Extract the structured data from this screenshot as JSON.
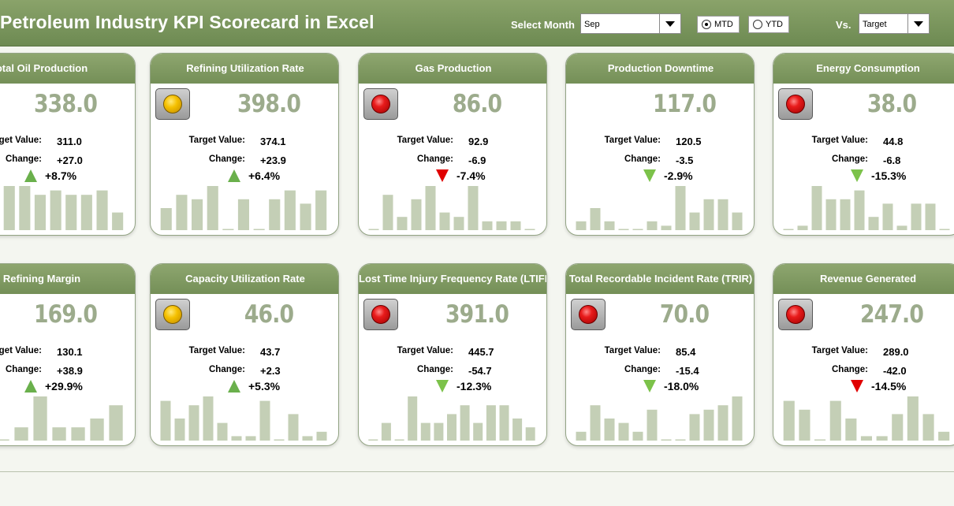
{
  "header": {
    "title": "Petroleum Industry KPI Scorecard in Excel",
    "select_month_label": "Select Month",
    "month_value": "Sep",
    "radio_mtd": "MTD",
    "radio_ytd": "YTD",
    "selected_period": "MTD",
    "vs_label": "Vs.",
    "vs_value": "Target"
  },
  "labels": {
    "target": "Target Value:",
    "change": "Change:"
  },
  "colors": {
    "header_green": "#7a9560",
    "big_number": "#9cab8c",
    "bar_fill": "#c4cfb6",
    "up_green": "#6ab04c",
    "down_red": "#e00000"
  },
  "cards": [
    {
      "title": "Total Oil Production",
      "visible_title": "otal Oil Production",
      "status": "none",
      "actual": "338.0",
      "target": "311.0",
      "change": "+27.0",
      "pct": "+8.7%",
      "direction": "up",
      "bars": [
        1,
        2,
        2,
        10,
        10,
        8,
        9,
        8,
        8,
        9,
        4
      ]
    },
    {
      "title": "Refining Utilization Rate",
      "status": "yellow",
      "actual": "398.0",
      "target": "374.1",
      "change": "+23.9",
      "pct": "+6.4%",
      "direction": "up",
      "bars": [
        5,
        8,
        7,
        10,
        0,
        7,
        0,
        7,
        9,
        6,
        9
      ]
    },
    {
      "title": "Gas Production",
      "status": "red",
      "actual": "86.0",
      "target": "92.9",
      "change": "-6.9",
      "pct": "-7.4%",
      "direction": "down-red",
      "bars": [
        0,
        8,
        3,
        7,
        10,
        4,
        3,
        10,
        2,
        2,
        2,
        0
      ]
    },
    {
      "title": "Production Downtime",
      "status": "none",
      "actual": "117.0",
      "target": "120.5",
      "change": "-3.5",
      "pct": "-2.9%",
      "direction": "down-green",
      "bars": [
        2,
        5,
        2,
        0,
        0,
        2,
        1,
        10,
        4,
        7,
        7,
        4
      ]
    },
    {
      "title": "Energy Consumption",
      "status": "red",
      "actual": "38.0",
      "target": "44.8",
      "change": "-6.8",
      "pct": "-15.3%",
      "direction": "down-green",
      "bars": [
        0,
        1,
        10,
        7,
        7,
        9,
        3,
        6,
        1,
        6,
        6,
        0
      ]
    },
    {
      "title": "Refining Margin",
      "visible_title": "Refining Margin",
      "status": "none",
      "actual": "169.0",
      "target": "130.1",
      "change": "+38.9",
      "pct": "+29.9%",
      "direction": "up",
      "bars": [
        3,
        1,
        0,
        3,
        10,
        3,
        3,
        5,
        8
      ]
    },
    {
      "title": "Capacity Utilization Rate",
      "status": "yellow",
      "actual": "46.0",
      "target": "43.7",
      "change": "+2.3",
      "pct": "+5.3%",
      "direction": "up",
      "bars": [
        9,
        5,
        8,
        10,
        4,
        1,
        1,
        9,
        0,
        6,
        1,
        2
      ]
    },
    {
      "title": "Lost Time Injury Frequency Rate (LTIFR)",
      "status": "red",
      "actual": "391.0",
      "target": "445.7",
      "change": "-54.7",
      "pct": "-12.3%",
      "direction": "down-green",
      "bars": [
        0,
        4,
        0,
        10,
        4,
        4,
        6,
        8,
        4,
        8,
        8,
        5,
        3
      ]
    },
    {
      "title": "Total Recordable Incident Rate (TRIR)",
      "status": "red",
      "actual": "70.0",
      "target": "85.4",
      "change": "-15.4",
      "pct": "-18.0%",
      "direction": "down-green",
      "bars": [
        2,
        8,
        5,
        4,
        2,
        7,
        0,
        0,
        6,
        7,
        8,
        10
      ]
    },
    {
      "title": "Revenue Generated",
      "status": "red",
      "actual": "247.0",
      "target": "289.0",
      "change": "-42.0",
      "pct": "-14.5%",
      "direction": "down-red",
      "bars": [
        9,
        7,
        0,
        9,
        5,
        1,
        1,
        6,
        10,
        6,
        2
      ]
    }
  ]
}
